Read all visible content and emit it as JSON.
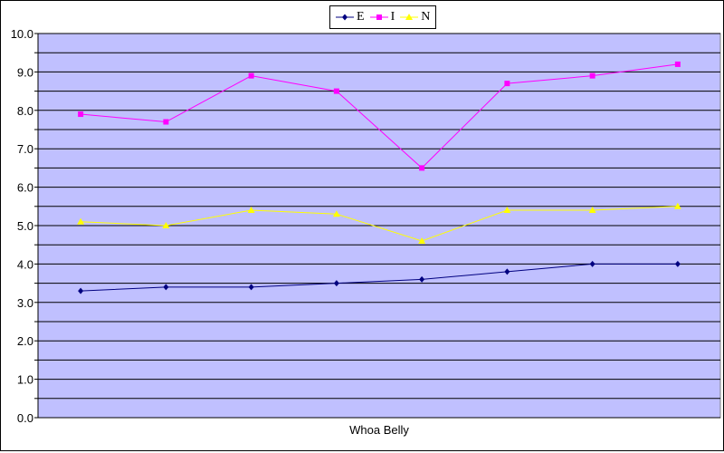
{
  "chart_data": {
    "type": "line",
    "categories": [
      "Whoa Belly"
    ],
    "x": [
      1,
      2,
      3,
      4,
      5,
      6,
      7,
      8
    ],
    "ylim": [
      0,
      10
    ],
    "ytick_labels": [
      "0.0",
      "1.0",
      "2.0",
      "3.0",
      "4.0",
      "5.0",
      "6.0",
      "7.0",
      "8.0",
      "9.0",
      "10.0"
    ],
    "grid": true,
    "legend_position": "top-center",
    "plot_background": "#c0c0ff",
    "series": [
      {
        "name": "E",
        "color": "#000080",
        "marker": "diamond",
        "values": [
          3.3,
          3.4,
          3.4,
          3.5,
          3.6,
          3.8,
          4.0,
          4.0
        ]
      },
      {
        "name": "I",
        "color": "#ff00ff",
        "marker": "square",
        "values": [
          7.9,
          7.7,
          8.9,
          8.5,
          6.5,
          8.7,
          8.9,
          9.2
        ]
      },
      {
        "name": "N",
        "color": "#ffff00",
        "marker": "triangle",
        "values": [
          5.1,
          5.0,
          5.4,
          5.3,
          4.6,
          5.4,
          5.4,
          5.5
        ]
      }
    ]
  }
}
